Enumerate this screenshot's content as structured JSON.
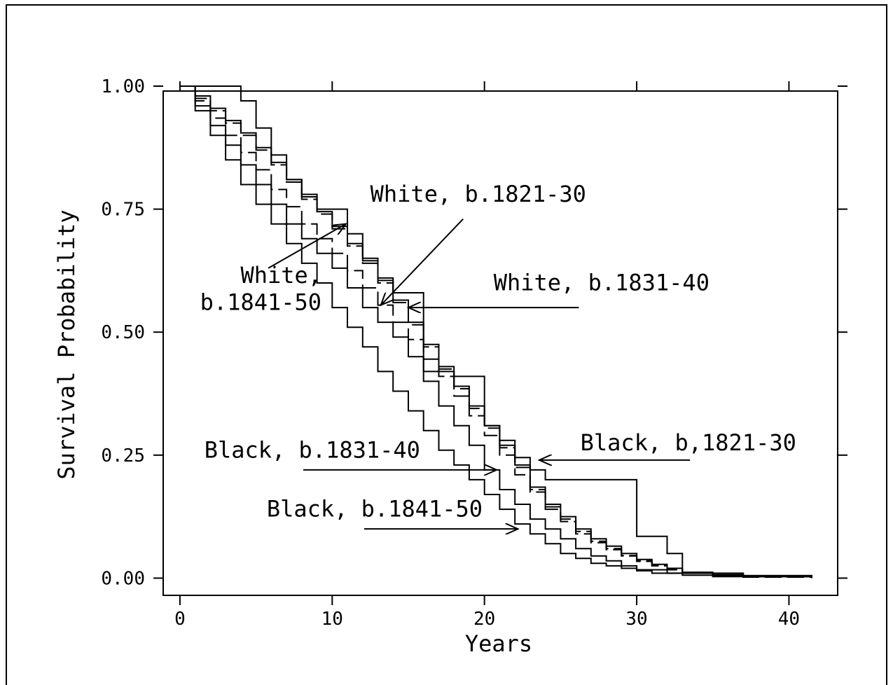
{
  "chart_data": {
    "type": "line",
    "step": true,
    "xlabel": "Years",
    "ylabel": "Survival Probability",
    "xlim": [
      -1.1,
      43.2
    ],
    "ylim": [
      -0.035,
      0.99
    ],
    "x_ticks": [
      0,
      10,
      20,
      30,
      40
    ],
    "x_tick_labels": [
      "0",
      "10",
      "20",
      "30",
      "40"
    ],
    "y_ticks": [
      0.0,
      0.25,
      0.5,
      0.75,
      1.0
    ],
    "y_tick_labels": [
      "0.00",
      "0.25",
      "0.50",
      "0.75",
      "1.00"
    ],
    "grid": false,
    "legend": "none",
    "series": [
      {
        "id": "white-1821-30",
        "dashed": false,
        "x": [
          0,
          1,
          2,
          3,
          4,
          5,
          6,
          7,
          8,
          9,
          10,
          11,
          12,
          13,
          14,
          15,
          16,
          17,
          18,
          19,
          20,
          21,
          22,
          23,
          24,
          25,
          26,
          27,
          28,
          29,
          30,
          31,
          32,
          33,
          35,
          37,
          41.5
        ],
        "y": [
          1.0,
          0.98,
          0.955,
          0.93,
          0.905,
          0.875,
          0.845,
          0.81,
          0.775,
          0.745,
          0.715,
          0.68,
          0.645,
          0.605,
          0.565,
          0.52,
          0.475,
          0.43,
          0.39,
          0.35,
          0.31,
          0.27,
          0.23,
          0.185,
          0.15,
          0.125,
          0.1,
          0.08,
          0.065,
          0.05,
          0.038,
          0.028,
          0.02,
          0.012,
          0.007,
          0.003,
          0.0
        ]
      },
      {
        "id": "white-1831-40",
        "dashed": true,
        "x": [
          0,
          1,
          2,
          3,
          4,
          5,
          6,
          7,
          8,
          9,
          10,
          11,
          12,
          13,
          14,
          15,
          16,
          17,
          18,
          19,
          20,
          21,
          22,
          23,
          24,
          25,
          26,
          27,
          28,
          29,
          30,
          31,
          32,
          33,
          35,
          37,
          41.5
        ],
        "y": [
          1.0,
          0.975,
          0.95,
          0.925,
          0.9,
          0.87,
          0.84,
          0.805,
          0.77,
          0.74,
          0.71,
          0.675,
          0.64,
          0.6,
          0.56,
          0.515,
          0.47,
          0.425,
          0.385,
          0.345,
          0.305,
          0.265,
          0.225,
          0.18,
          0.145,
          0.12,
          0.095,
          0.075,
          0.06,
          0.046,
          0.035,
          0.026,
          0.018,
          0.011,
          0.006,
          0.002,
          0.0
        ]
      },
      {
        "id": "white-1841-50",
        "dashed": true,
        "x": [
          0,
          1,
          2,
          3,
          4,
          5,
          6,
          7,
          8,
          9,
          10,
          11,
          12,
          13,
          14,
          15,
          16,
          17,
          18,
          19,
          20,
          21,
          22,
          23,
          24,
          25,
          26,
          27,
          28,
          29,
          30,
          31,
          32,
          33,
          35,
          37,
          41.5
        ],
        "y": [
          1.0,
          0.97,
          0.935,
          0.9,
          0.865,
          0.83,
          0.79,
          0.755,
          0.72,
          0.69,
          0.66,
          0.625,
          0.59,
          0.555,
          0.52,
          0.485,
          0.445,
          0.41,
          0.37,
          0.33,
          0.29,
          0.25,
          0.21,
          0.175,
          0.14,
          0.115,
          0.09,
          0.072,
          0.058,
          0.045,
          0.034,
          0.025,
          0.017,
          0.01,
          0.005,
          0.002,
          0.0
        ]
      },
      {
        "id": "black-1821-30",
        "dashed": false,
        "x": [
          0,
          4,
          5,
          6,
          7,
          8,
          9,
          10,
          11,
          12,
          13,
          14,
          15,
          16,
          18,
          20,
          21,
          22,
          23,
          24,
          26,
          30,
          32,
          33,
          37,
          41.5
        ],
        "y": [
          1.0,
          0.97,
          0.915,
          0.86,
          0.81,
          0.78,
          0.75,
          0.75,
          0.7,
          0.65,
          0.61,
          0.58,
          0.58,
          0.42,
          0.41,
          0.31,
          0.28,
          0.245,
          0.22,
          0.2,
          0.2,
          0.085,
          0.05,
          0.01,
          0.005,
          0.0
        ]
      },
      {
        "id": "black-1831-40",
        "dashed": false,
        "x": [
          0,
          1,
          2,
          3,
          4,
          5,
          6,
          7,
          8,
          9,
          10,
          11,
          12,
          13,
          14,
          15,
          16,
          17,
          18,
          19,
          20,
          21,
          22,
          23,
          24,
          25,
          26,
          27,
          28,
          29,
          30,
          32,
          35,
          41.5
        ],
        "y": [
          1.0,
          0.96,
          0.92,
          0.88,
          0.84,
          0.8,
          0.76,
          0.72,
          0.69,
          0.66,
          0.63,
          0.59,
          0.55,
          0.52,
          0.49,
          0.45,
          0.4,
          0.35,
          0.31,
          0.27,
          0.22,
          0.18,
          0.15,
          0.12,
          0.1,
          0.08,
          0.06,
          0.045,
          0.035,
          0.025,
          0.017,
          0.01,
          0.005,
          0.0
        ]
      },
      {
        "id": "black-1841-50",
        "dashed": false,
        "x": [
          0,
          1,
          2,
          3,
          4,
          5,
          6,
          7,
          8,
          9,
          10,
          11,
          12,
          13,
          14,
          15,
          16,
          17,
          18,
          19,
          20,
          21,
          22,
          23,
          24,
          25,
          26,
          27,
          28,
          29,
          30,
          31,
          33,
          35,
          41.5
        ],
        "y": [
          1.0,
          0.95,
          0.9,
          0.85,
          0.8,
          0.76,
          0.72,
          0.68,
          0.64,
          0.6,
          0.55,
          0.51,
          0.47,
          0.42,
          0.38,
          0.34,
          0.3,
          0.26,
          0.23,
          0.2,
          0.17,
          0.14,
          0.11,
          0.09,
          0.07,
          0.05,
          0.04,
          0.03,
          0.025,
          0.02,
          0.015,
          0.01,
          0.006,
          0.003,
          0.0
        ]
      }
    ],
    "annotations": [
      {
        "id": "white-1821-30",
        "lines": [
          "White, b.1821-30"
        ],
        "text_x": 12.5,
        "text_y": 0.765,
        "anchor": "start",
        "arrow_from": [
          18.6,
          0.73
        ],
        "arrow_to": [
          13.2,
          0.555
        ]
      },
      {
        "id": "white-1841-50",
        "lines": [
          "White,",
          "b.1841-50"
        ],
        "text_x": 9.3,
        "text_yy": [
          0.6,
          0.545
        ],
        "anchor": "end",
        "arrow_from": [
          5.8,
          0.63
        ],
        "arrow_to": [
          10.9,
          0.72
        ]
      },
      {
        "id": "white-1831-40",
        "lines": [
          "White, b.1831-40"
        ],
        "text_x": 20.6,
        "text_y": 0.585,
        "anchor": "start",
        "arrow_from": [
          26.2,
          0.55
        ],
        "arrow_to": [
          15.0,
          0.55
        ]
      },
      {
        "id": "black-1821-30",
        "lines": [
          "Black, b,1821-30"
        ],
        "text_x": 26.3,
        "text_y": 0.26,
        "anchor": "start",
        "arrow_from": [
          33.5,
          0.24
        ],
        "arrow_to": [
          23.6,
          0.24
        ]
      },
      {
        "id": "black-1831-40",
        "lines": [
          "Black, b.1831-40"
        ],
        "text_x": 1.6,
        "text_y": 0.245,
        "anchor": "start",
        "arrow_from": [
          8.1,
          0.22
        ],
        "arrow_to": [
          20.8,
          0.22
        ]
      },
      {
        "id": "black-1841-50",
        "lines": [
          "Black, b.1841-50"
        ],
        "text_x": 5.7,
        "text_y": 0.125,
        "anchor": "start",
        "arrow_from": [
          12.1,
          0.1
        ],
        "arrow_to": [
          22.2,
          0.1
        ]
      }
    ]
  }
}
